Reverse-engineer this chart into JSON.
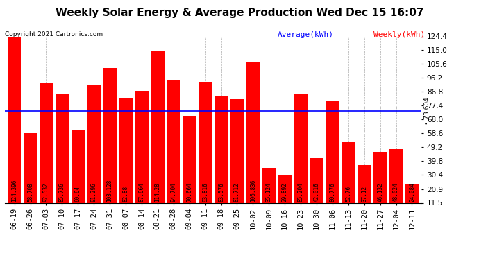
{
  "title": "Weekly Solar Energy & Average Production Wed Dec 15 16:07",
  "copyright": "Copyright 2021 Cartronics.com",
  "average_label": "Average(kWh)",
  "weekly_label": "Weekly(kWh)",
  "average_value": 73.604,
  "average_color": "#0000ff",
  "bar_color": "#ff0000",
  "ylim_min": 11.5,
  "ylim_max": 124.4,
  "yticks": [
    11.5,
    20.9,
    30.4,
    39.8,
    49.2,
    58.6,
    68.0,
    77.4,
    86.8,
    96.2,
    105.6,
    115.0,
    124.4
  ],
  "categories": [
    "06-19",
    "06-26",
    "07-03",
    "07-10",
    "07-17",
    "07-24",
    "07-31",
    "08-07",
    "08-14",
    "08-21",
    "08-28",
    "09-04",
    "09-11",
    "09-18",
    "09-25",
    "10-02",
    "10-09",
    "10-16",
    "10-23",
    "10-30",
    "11-06",
    "11-13",
    "11-20",
    "11-27",
    "12-04",
    "12-11"
  ],
  "values": [
    124.396,
    58.708,
    92.532,
    85.736,
    60.64,
    91.296,
    103.128,
    82.88,
    87.664,
    114.28,
    94.704,
    70.664,
    93.816,
    83.576,
    81.712,
    106.836,
    35.124,
    29.892,
    85.204,
    42.016,
    80.776,
    52.76,
    37.12,
    46.132,
    48.024,
    24.084
  ],
  "background_color": "#ffffff",
  "title_fontsize": 11,
  "grid_color": "#aaaaaa",
  "bar_value_fontsize": 5.5,
  "tick_fontsize": 7.5,
  "copyright_fontsize": 6.5,
  "legend_fontsize": 8
}
